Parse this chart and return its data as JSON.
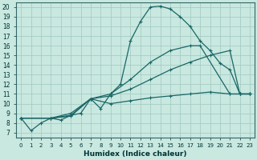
{
  "xlabel": "Humidex (Indice chaleur)",
  "xlim": [
    -0.5,
    23.5
  ],
  "ylim": [
    6.5,
    20.5
  ],
  "xticks": [
    0,
    1,
    2,
    3,
    4,
    5,
    6,
    7,
    8,
    9,
    10,
    11,
    12,
    13,
    14,
    15,
    16,
    17,
    18,
    19,
    20,
    21,
    22,
    23
  ],
  "yticks": [
    7,
    8,
    9,
    10,
    11,
    12,
    13,
    14,
    15,
    16,
    17,
    18,
    19,
    20
  ],
  "background_color": "#c8e8e0",
  "grid_color": "#a0c8c0",
  "line_color": "#1a6666",
  "lines": [
    {
      "x": [
        0,
        1,
        2,
        3,
        4,
        5,
        6,
        7,
        8,
        9,
        10,
        11,
        12,
        13,
        14,
        15,
        16,
        17,
        18,
        19,
        20,
        21,
        22,
        23
      ],
      "y": [
        8.5,
        7.2,
        8.0,
        8.5,
        8.3,
        8.8,
        9.0,
        10.5,
        9.5,
        11.0,
        12.0,
        16.5,
        18.5,
        20.0,
        20.1,
        19.8,
        19.0,
        18.0,
        16.5,
        15.5,
        14.2,
        13.5,
        11.0,
        11.0
      ]
    },
    {
      "x": [
        0,
        3,
        5,
        7,
        9,
        11,
        13,
        15,
        17,
        18,
        21,
        22,
        23
      ],
      "y": [
        8.5,
        8.5,
        9.0,
        10.5,
        11.0,
        12.5,
        14.3,
        15.5,
        16.0,
        16.0,
        11.0,
        11.0,
        11.0
      ]
    },
    {
      "x": [
        0,
        3,
        5,
        7,
        9,
        11,
        13,
        15,
        17,
        19,
        21,
        22,
        23
      ],
      "y": [
        8.5,
        8.5,
        8.8,
        10.5,
        10.8,
        11.5,
        12.5,
        13.5,
        14.3,
        15.0,
        15.5,
        11.0,
        11.0
      ]
    },
    {
      "x": [
        0,
        3,
        5,
        7,
        9,
        11,
        13,
        15,
        17,
        19,
        21,
        22,
        23
      ],
      "y": [
        8.5,
        8.5,
        8.7,
        10.5,
        10.0,
        10.3,
        10.6,
        10.8,
        11.0,
        11.2,
        11.0,
        11.0,
        11.0
      ]
    }
  ]
}
